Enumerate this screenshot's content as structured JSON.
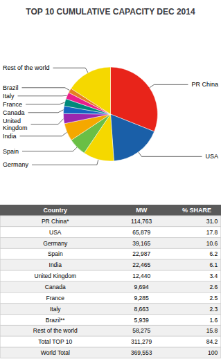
{
  "chart_data": {
    "type": "pie",
    "title": "TOP 10 CUMULATIVE CAPACITY DEC 2014",
    "categories": [
      "PR China",
      "USA",
      "Germany",
      "Spain",
      "India",
      "United\nKingdom",
      "Canada",
      "France",
      "Italy",
      "Brazil",
      "Rest of the world"
    ],
    "values": [
      31.0,
      17.8,
      10.6,
      6.2,
      6.1,
      3.4,
      2.6,
      2.5,
      2.3,
      1.6,
      15.8
    ],
    "colors": [
      "#e8241a",
      "#1a5fa8",
      "#f5d800",
      "#6abf45",
      "#f5a800",
      "#9b27af",
      "#1565c0",
      "#00897b",
      "#e91e8c",
      "#e67e22",
      "#f5d800"
    ],
    "table": {
      "header": [
        "Country",
        "MW",
        "% SHARE"
      ],
      "rows": [
        [
          "PR China*",
          "114,763",
          "31.0"
        ],
        [
          "USA",
          "65,879",
          "17.8"
        ],
        [
          "Germany",
          "39,165",
          "10.6"
        ],
        [
          "Spain",
          "22,987",
          "6.2"
        ],
        [
          "India",
          "22,465",
          "6.1"
        ],
        [
          "United Kingdom",
          "12,440",
          "3.4"
        ],
        [
          "Canada",
          "9,694",
          "2.6"
        ],
        [
          "France",
          "9,285",
          "2.5"
        ],
        [
          "Italy",
          "8,663",
          "2.3"
        ],
        [
          "Brazil**",
          "5,939",
          "1.6"
        ],
        [
          "Rest of the world",
          "58,275",
          "15.8"
        ],
        [
          "Total TOP 10",
          "311,279",
          "84.2"
        ],
        [
          "World Total",
          "369,553",
          "100"
        ]
      ]
    }
  }
}
